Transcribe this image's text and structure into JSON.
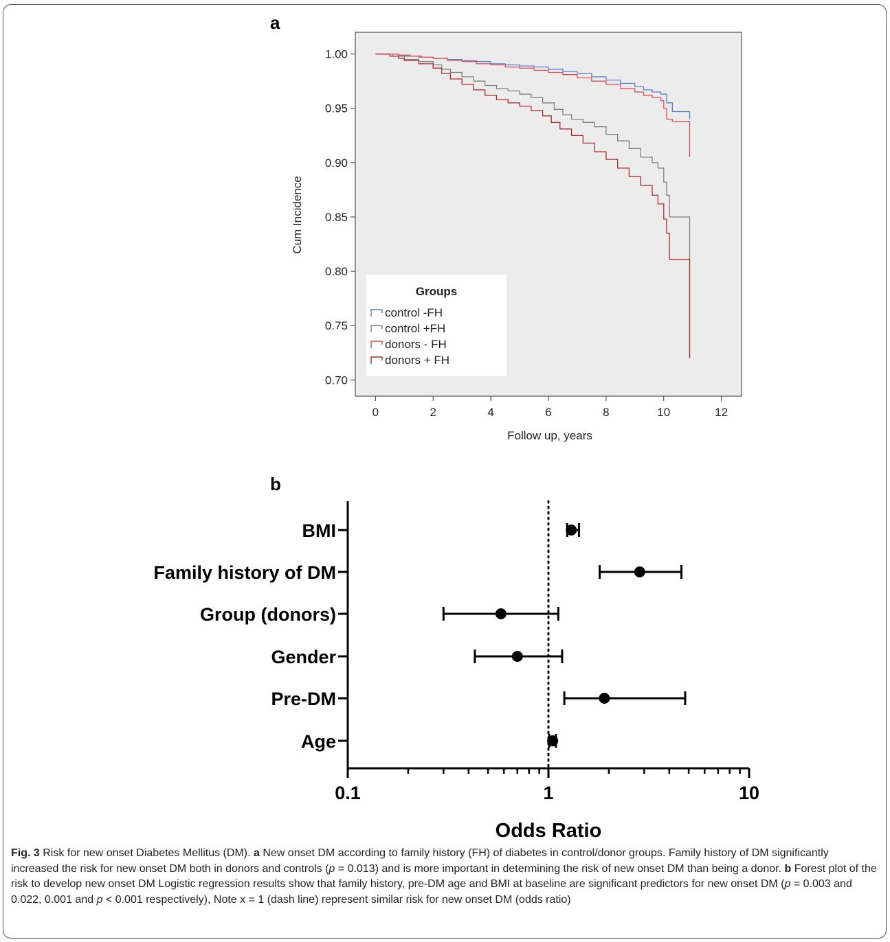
{
  "panel_a": {
    "letter": "a",
    "ylabel": "Cum Incidence",
    "xlabel": "Follow up, years",
    "legend_title": "Groups"
  },
  "panel_b": {
    "letter": "b",
    "xlabel": "Odds Ratio"
  },
  "chart_data": [
    {
      "type": "line",
      "subtype": "kaplan-meier step",
      "panel": "a",
      "xlabel": "Follow up, years",
      "ylabel": "Cum Incidence",
      "xlim": [
        -0.7,
        12.7
      ],
      "ylim": [
        0.685,
        1.02
      ],
      "xticks": [
        0,
        2,
        4,
        6,
        8,
        10,
        12
      ],
      "yticks": [
        "1.00",
        "0.95",
        "0.90",
        "0.85",
        "0.80",
        "0.75",
        "0.70"
      ],
      "legend": {
        "title": "Groups",
        "placement": "bottom-left"
      },
      "grid": false,
      "series": [
        {
          "name": "control -FH",
          "color": "#5a7cd6",
          "x": [
            0,
            0.8,
            1.0,
            1.5,
            2.0,
            2.5,
            3.0,
            3.5,
            4.0,
            4.5,
            5.0,
            5.5,
            6.0,
            6.5,
            7.0,
            7.5,
            8.0,
            8.5,
            9.0,
            9.3,
            9.6,
            9.9,
            10.1,
            10.3,
            10.6,
            10.9,
            10.9
          ],
          "y": [
            1.0,
            0.999,
            0.998,
            0.997,
            0.996,
            0.995,
            0.994,
            0.993,
            0.991,
            0.99,
            0.989,
            0.988,
            0.986,
            0.984,
            0.982,
            0.979,
            0.976,
            0.973,
            0.97,
            0.967,
            0.965,
            0.963,
            0.955,
            0.947,
            0.947,
            0.947,
            0.94
          ]
        },
        {
          "name": "control +FH",
          "color": "#808080",
          "x": [
            0,
            0.6,
            1.0,
            1.5,
            2.0,
            2.3,
            2.6,
            3.0,
            3.4,
            3.8,
            4.2,
            4.6,
            5.0,
            5.4,
            5.8,
            6.2,
            6.5,
            6.8,
            7.2,
            7.6,
            8.0,
            8.4,
            8.8,
            9.2,
            9.6,
            9.8,
            10.0,
            10.1,
            10.2,
            10.5,
            10.9,
            10.9
          ],
          "y": [
            1.0,
            0.998,
            0.995,
            0.993,
            0.99,
            0.986,
            0.983,
            0.979,
            0.975,
            0.971,
            0.968,
            0.966,
            0.963,
            0.96,
            0.955,
            0.949,
            0.944,
            0.94,
            0.937,
            0.933,
            0.926,
            0.92,
            0.913,
            0.905,
            0.9,
            0.895,
            0.882,
            0.87,
            0.85,
            0.85,
            0.85,
            0.72
          ]
        },
        {
          "name": "donors - FH",
          "color": "#e84c4c",
          "x": [
            0,
            0.8,
            1.2,
            1.6,
            2.0,
            2.5,
            3.0,
            3.5,
            4.0,
            4.5,
            5.0,
            5.5,
            6.0,
            6.5,
            7.0,
            7.5,
            8.0,
            8.5,
            9.0,
            9.3,
            9.6,
            9.9,
            10.0,
            10.1,
            10.3,
            10.6,
            10.9,
            10.9
          ],
          "y": [
            1.0,
            0.999,
            0.998,
            0.997,
            0.996,
            0.994,
            0.993,
            0.991,
            0.99,
            0.988,
            0.987,
            0.985,
            0.983,
            0.981,
            0.978,
            0.975,
            0.972,
            0.968,
            0.965,
            0.962,
            0.96,
            0.957,
            0.95,
            0.94,
            0.938,
            0.938,
            0.938,
            0.905
          ]
        },
        {
          "name": "donors + FH",
          "color": "#b52a2a",
          "x": [
            0,
            0.5,
            0.8,
            1.0,
            1.5,
            2.0,
            2.3,
            2.6,
            3.0,
            3.4,
            3.8,
            4.2,
            4.6,
            5.0,
            5.4,
            5.8,
            6.1,
            6.4,
            6.8,
            7.2,
            7.6,
            8.0,
            8.4,
            8.8,
            9.2,
            9.6,
            9.8,
            10.0,
            10.1,
            10.2,
            10.5,
            10.9,
            10.9
          ],
          "y": [
            1.0,
            0.998,
            0.996,
            0.994,
            0.991,
            0.987,
            0.982,
            0.977,
            0.972,
            0.967,
            0.962,
            0.958,
            0.955,
            0.952,
            0.948,
            0.943,
            0.937,
            0.931,
            0.925,
            0.918,
            0.91,
            0.903,
            0.895,
            0.887,
            0.879,
            0.87,
            0.862,
            0.848,
            0.835,
            0.811,
            0.811,
            0.811,
            0.72
          ]
        }
      ]
    },
    {
      "type": "scatter",
      "subtype": "forest plot",
      "panel": "b",
      "xlabel": "Odds Ratio",
      "xscale": "log",
      "xlim": [
        0.1,
        10
      ],
      "xticks": [
        "0.1",
        "1",
        "10"
      ],
      "reference_line": 1,
      "grid": false,
      "categories": [
        "BMI",
        "Family history of DM",
        "Group (donors)",
        "Gender",
        "Pre-DM",
        "Age"
      ],
      "series": [
        {
          "or": [
            1.3,
            2.85,
            0.58,
            0.7,
            1.9,
            1.05
          ],
          "ci_low": [
            1.24,
            1.8,
            0.3,
            0.43,
            1.2,
            1.01
          ],
          "ci_high": [
            1.42,
            4.6,
            1.12,
            1.17,
            4.8,
            1.09
          ]
        }
      ]
    }
  ],
  "caption": {
    "fig_label": "Fig. 3",
    "intro": " Risk for new onset Diabetes Mellitus (DM). ",
    "a_label": "a",
    "a_text_1": " New onset DM according to family history (FH) of diabetes in control/donor groups. Family history of DM significantly increased the risk for new onset DM both in donors and controls (",
    "p_symbol": "p",
    "a_text_2": " = 0.013) and is more important in determining the risk of new onset DM than being a donor. ",
    "b_label": "b",
    "b_text_1": " Forest plot of the risk to develop new onset DM Logistic regression results show that family history, pre-DM age and BMI at baseline are significant predictors for new onset DM (",
    "b_text_2": " = 0.003 and 0.022, 0.001 and ",
    "b_text_3": " < 0.001 respectively), Note x = 1 (dash line) represent similar risk for new onset DM (odds ratio)"
  }
}
